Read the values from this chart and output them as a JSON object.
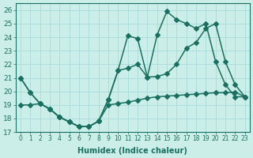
{
  "xlabel": "Humidex (Indice chaleur)",
  "ylabel": "",
  "xlim": [
    -0.5,
    23.5
  ],
  "ylim": [
    17,
    26.5
  ],
  "yticks": [
    17,
    18,
    19,
    20,
    21,
    22,
    23,
    24,
    25,
    26
  ],
  "xticks": [
    0,
    1,
    2,
    3,
    4,
    5,
    6,
    7,
    8,
    9,
    10,
    11,
    12,
    13,
    14,
    15,
    16,
    17,
    18,
    19,
    20,
    21,
    22,
    23
  ],
  "bg_color": "#cceee8",
  "grid_color": "#aadddd",
  "line_color": "#1a7060",
  "line1_x": [
    0,
    1,
    2,
    3,
    4,
    5,
    6,
    7,
    8,
    9,
    10,
    11,
    12,
    13,
    14,
    15,
    16,
    17,
    18,
    19,
    20,
    21,
    22,
    23
  ],
  "line1_y": [
    21.0,
    19.9,
    19.1,
    18.7,
    18.1,
    17.75,
    17.4,
    17.4,
    17.8,
    19.4,
    21.55,
    24.1,
    23.9,
    21.05,
    24.15,
    25.9,
    25.3,
    25.0,
    24.65,
    25.0,
    22.2,
    20.5,
    19.6,
    19.6
  ],
  "line2_x": [
    0,
    1,
    2,
    3,
    4,
    5,
    6,
    7,
    8,
    9,
    10,
    11,
    12,
    13,
    14,
    15,
    16,
    17,
    18,
    19,
    20,
    21,
    22,
    23
  ],
  "line2_y": [
    21.0,
    19.9,
    19.1,
    18.7,
    18.1,
    17.75,
    17.4,
    17.4,
    17.8,
    19.4,
    21.55,
    21.7,
    22.0,
    21.05,
    21.1,
    21.3,
    22.0,
    23.2,
    23.6,
    24.65,
    25.0,
    22.2,
    20.5,
    19.6
  ],
  "line3_x": [
    0,
    1,
    2,
    3,
    4,
    5,
    6,
    7,
    8,
    9,
    10,
    11,
    12,
    13,
    14,
    15,
    16,
    17,
    18,
    19,
    20,
    21,
    22,
    23
  ],
  "line3_y": [
    19.0,
    19.0,
    19.1,
    18.7,
    18.1,
    17.75,
    17.4,
    17.4,
    17.8,
    19.0,
    19.1,
    19.2,
    19.35,
    19.5,
    19.6,
    19.65,
    19.7,
    19.75,
    19.8,
    19.85,
    19.9,
    19.9,
    19.95,
    19.6
  ],
  "marker_size": 3.0,
  "line_width": 1.1
}
